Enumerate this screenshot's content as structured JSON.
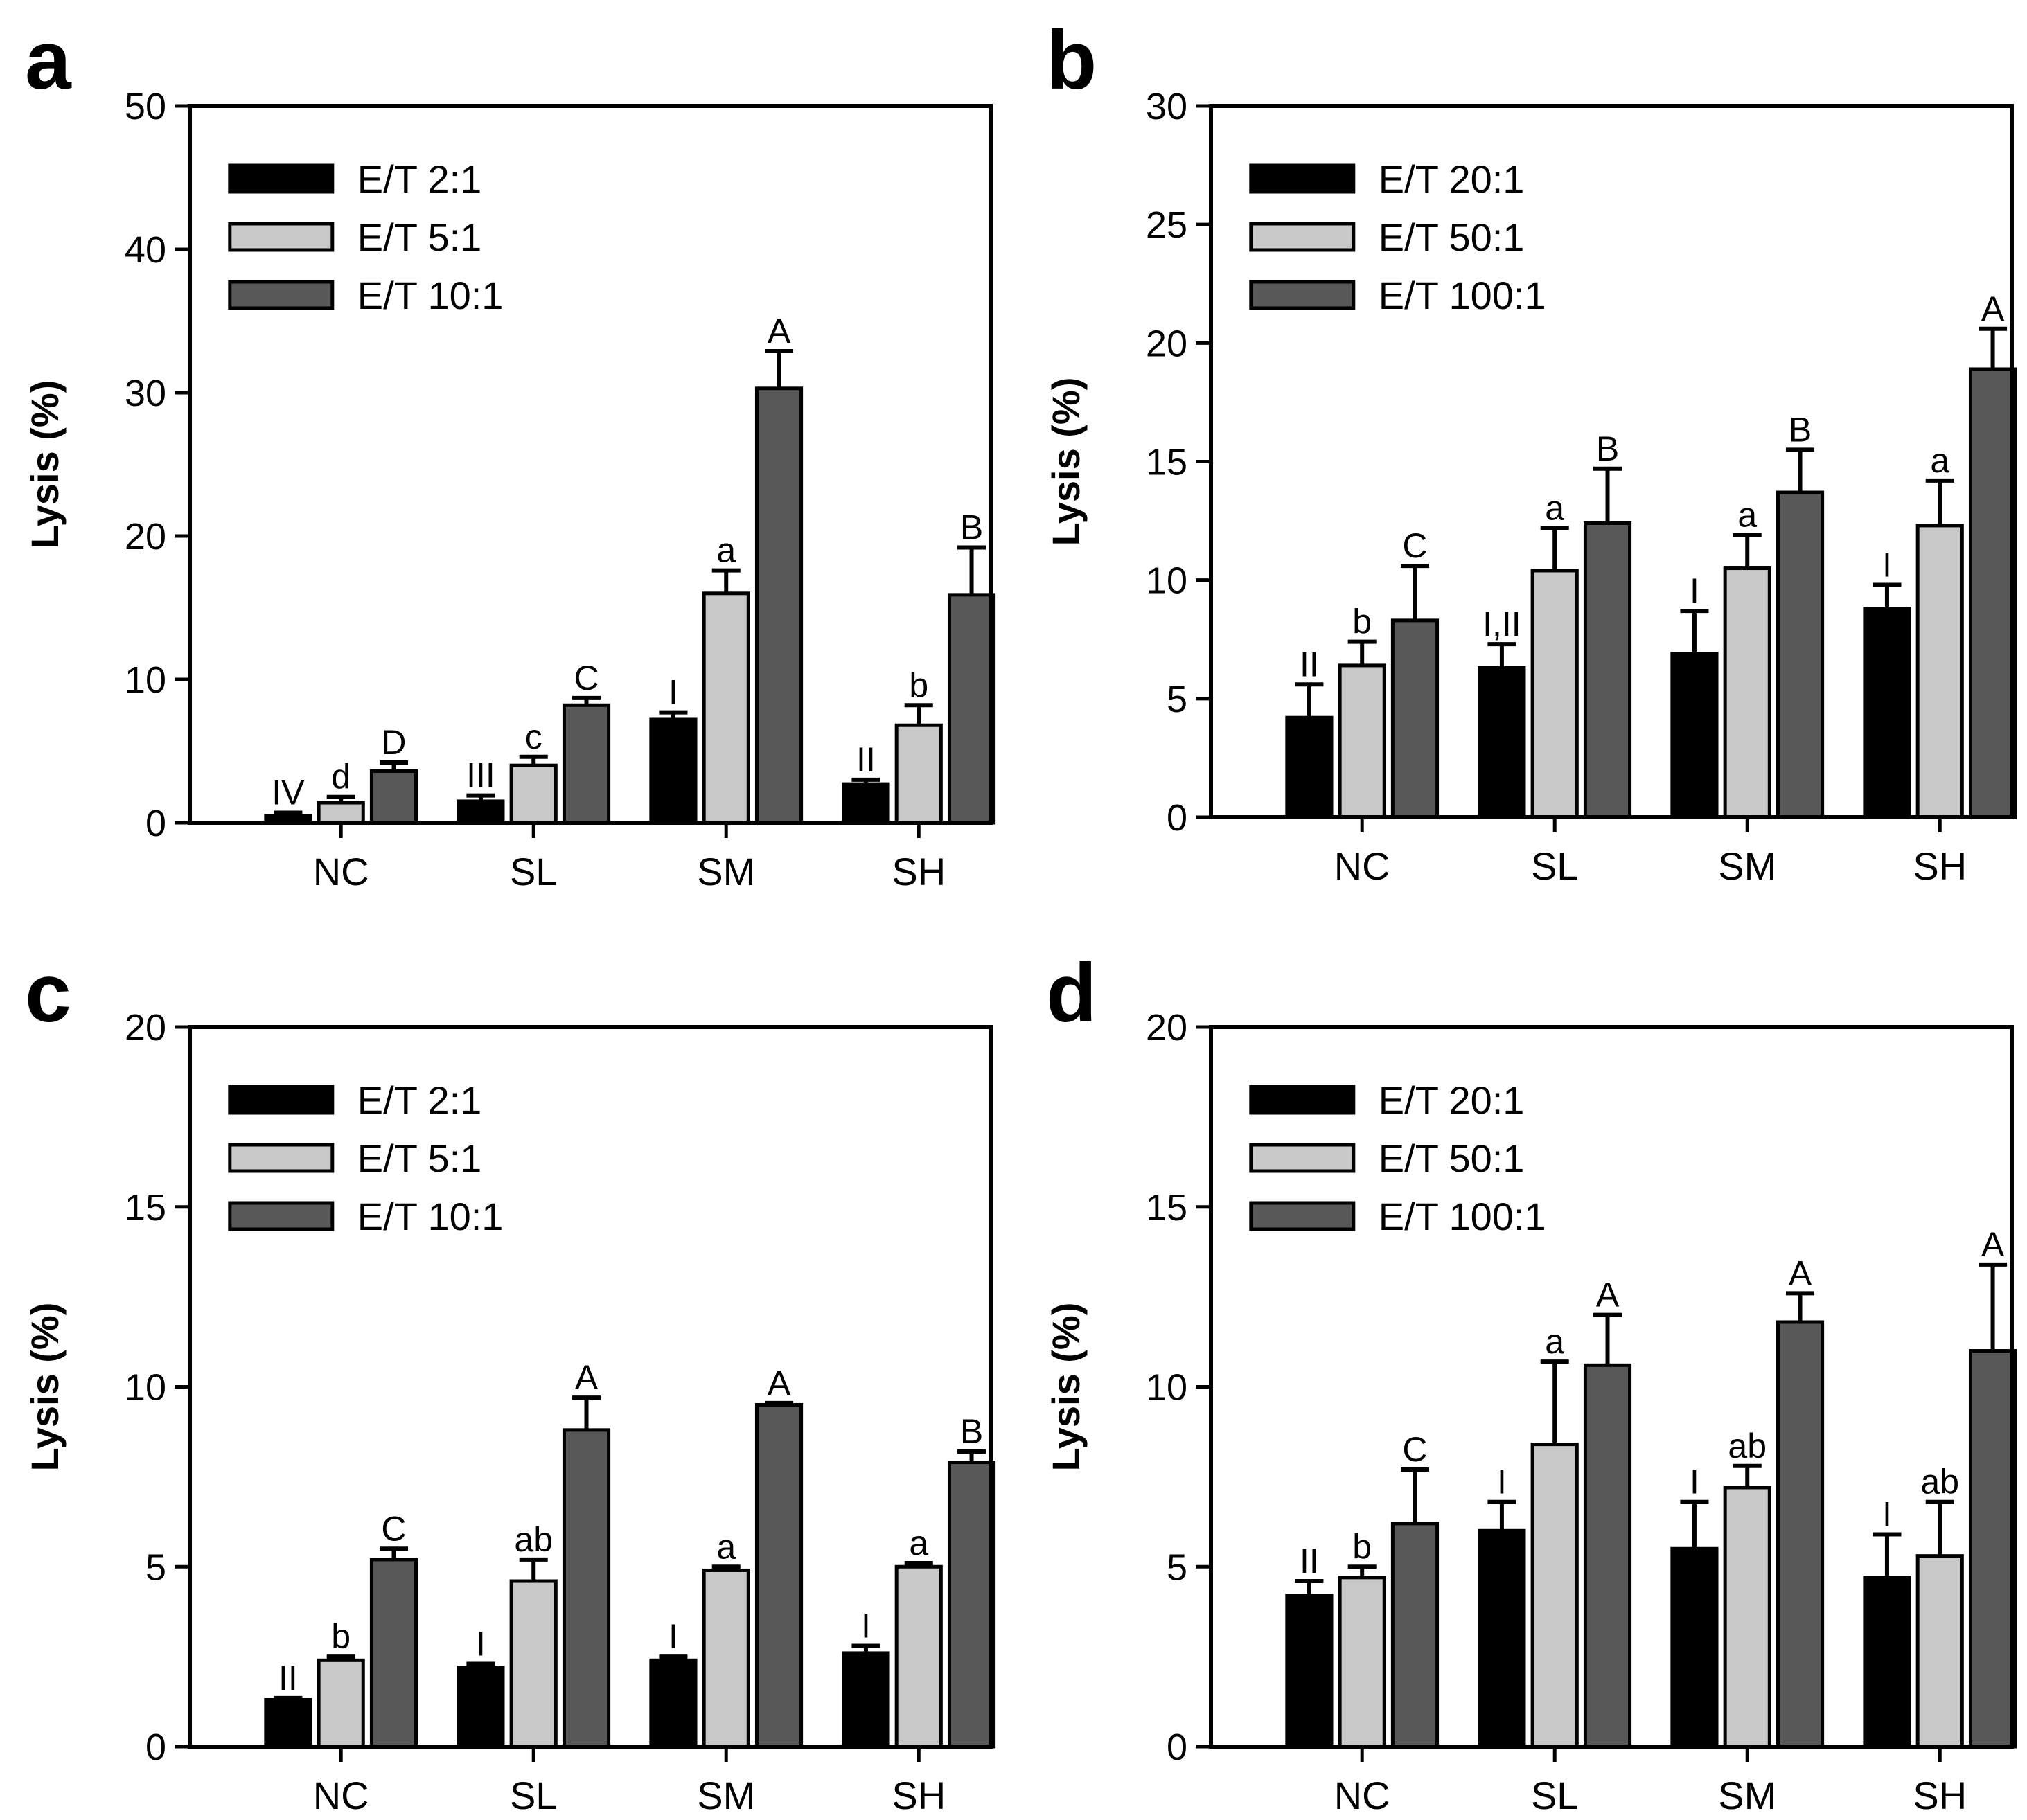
{
  "colors": {
    "series1": "#000000",
    "series2": "#c8c8c8",
    "series3": "#585858",
    "axis": "#000000"
  },
  "chart_data": [
    {
      "panel": "a",
      "type": "bar",
      "ylabel": "Lysis (%)",
      "xlabel": "",
      "ylim": [
        0,
        50
      ],
      "yticks": [
        0,
        10,
        20,
        30,
        40,
        50
      ],
      "categories": [
        "NC",
        "SL",
        "SM",
        "SH"
      ],
      "series": [
        {
          "name": "E/T 2:1",
          "values": [
            0.5,
            1.5,
            7.2,
            2.7
          ],
          "errors": [
            0.2,
            0.4,
            0.5,
            0.3
          ],
          "labels": [
            "IV",
            "III",
            "I",
            "II"
          ]
        },
        {
          "name": "E/T 5:1",
          "values": [
            1.4,
            4.0,
            16.0,
            6.8
          ],
          "errors": [
            0.4,
            0.6,
            1.6,
            1.4
          ],
          "labels": [
            "d",
            "c",
            "a",
            "b"
          ]
        },
        {
          "name": "E/T 10:1",
          "values": [
            3.6,
            8.2,
            30.3,
            15.9
          ],
          "errors": [
            0.6,
            0.5,
            2.6,
            3.3
          ],
          "labels": [
            "D",
            "C",
            "A",
            "B"
          ]
        }
      ]
    },
    {
      "panel": "b",
      "type": "bar",
      "ylabel": "Lysis (%)",
      "xlabel": "",
      "ylim": [
        0,
        30
      ],
      "yticks": [
        0,
        5,
        10,
        15,
        20,
        25,
        30
      ],
      "categories": [
        "NC",
        "SL",
        "SM",
        "SH"
      ],
      "series": [
        {
          "name": "E/T 20:1",
          "values": [
            4.2,
            6.3,
            6.9,
            8.8
          ],
          "errors": [
            1.4,
            1.0,
            1.8,
            1.0
          ],
          "labels": [
            "II",
            "I,II",
            "I",
            "I"
          ]
        },
        {
          "name": "E/T 50:1",
          "values": [
            6.4,
            10.4,
            10.5,
            12.3
          ],
          "errors": [
            1.0,
            1.8,
            1.4,
            1.9
          ],
          "labels": [
            "b",
            "a",
            "a",
            "a"
          ]
        },
        {
          "name": "E/T 100:1",
          "values": [
            8.3,
            12.4,
            13.7,
            18.9
          ],
          "errors": [
            2.3,
            2.3,
            1.8,
            1.7
          ],
          "labels": [
            "C",
            "B",
            "B",
            "A"
          ]
        }
      ]
    },
    {
      "panel": "c",
      "type": "bar",
      "ylabel": "Lysis (%)",
      "xlabel": "",
      "ylim": [
        0,
        20
      ],
      "yticks": [
        0,
        5,
        10,
        15,
        20
      ],
      "categories": [
        "NC",
        "SL",
        "SM",
        "SH"
      ],
      "series": [
        {
          "name": "E/T 2:1",
          "values": [
            1.3,
            2.2,
            2.4,
            2.6
          ],
          "errors": [
            0.05,
            0.1,
            0.1,
            0.2
          ],
          "labels": [
            "II",
            "I",
            "I",
            "I"
          ]
        },
        {
          "name": "E/T 5:1",
          "values": [
            2.4,
            4.6,
            4.9,
            5.0
          ],
          "errors": [
            0.1,
            0.6,
            0.1,
            0.1
          ],
          "labels": [
            "b",
            "ab",
            "a",
            "a"
          ]
        },
        {
          "name": "E/T 10:1",
          "values": [
            5.2,
            8.8,
            9.5,
            7.9
          ],
          "errors": [
            0.3,
            0.9,
            0.05,
            0.3
          ],
          "labels": [
            "C",
            "A",
            "A",
            "B"
          ]
        }
      ]
    },
    {
      "panel": "d",
      "type": "bar",
      "ylabel": "Lysis (%)",
      "xlabel": "",
      "ylim": [
        0,
        20
      ],
      "yticks": [
        0,
        5,
        10,
        15,
        20
      ],
      "categories": [
        "NC",
        "SL",
        "SM",
        "SH"
      ],
      "series": [
        {
          "name": "E/T 20:1",
          "values": [
            4.2,
            6.0,
            5.5,
            4.7
          ],
          "errors": [
            0.4,
            0.8,
            1.3,
            1.2
          ],
          "labels": [
            "II",
            "I",
            "I",
            "I"
          ]
        },
        {
          "name": "E/T 50:1",
          "values": [
            4.7,
            8.4,
            7.2,
            5.3
          ],
          "errors": [
            0.3,
            2.3,
            0.6,
            1.5
          ],
          "labels": [
            "b",
            "a",
            "ab",
            "ab"
          ]
        },
        {
          "name": "E/T 100:1",
          "values": [
            6.2,
            10.6,
            11.8,
            11.0
          ],
          "errors": [
            1.5,
            1.4,
            0.8,
            2.4
          ],
          "labels": [
            "C",
            "A",
            "A",
            "A"
          ]
        }
      ]
    }
  ]
}
